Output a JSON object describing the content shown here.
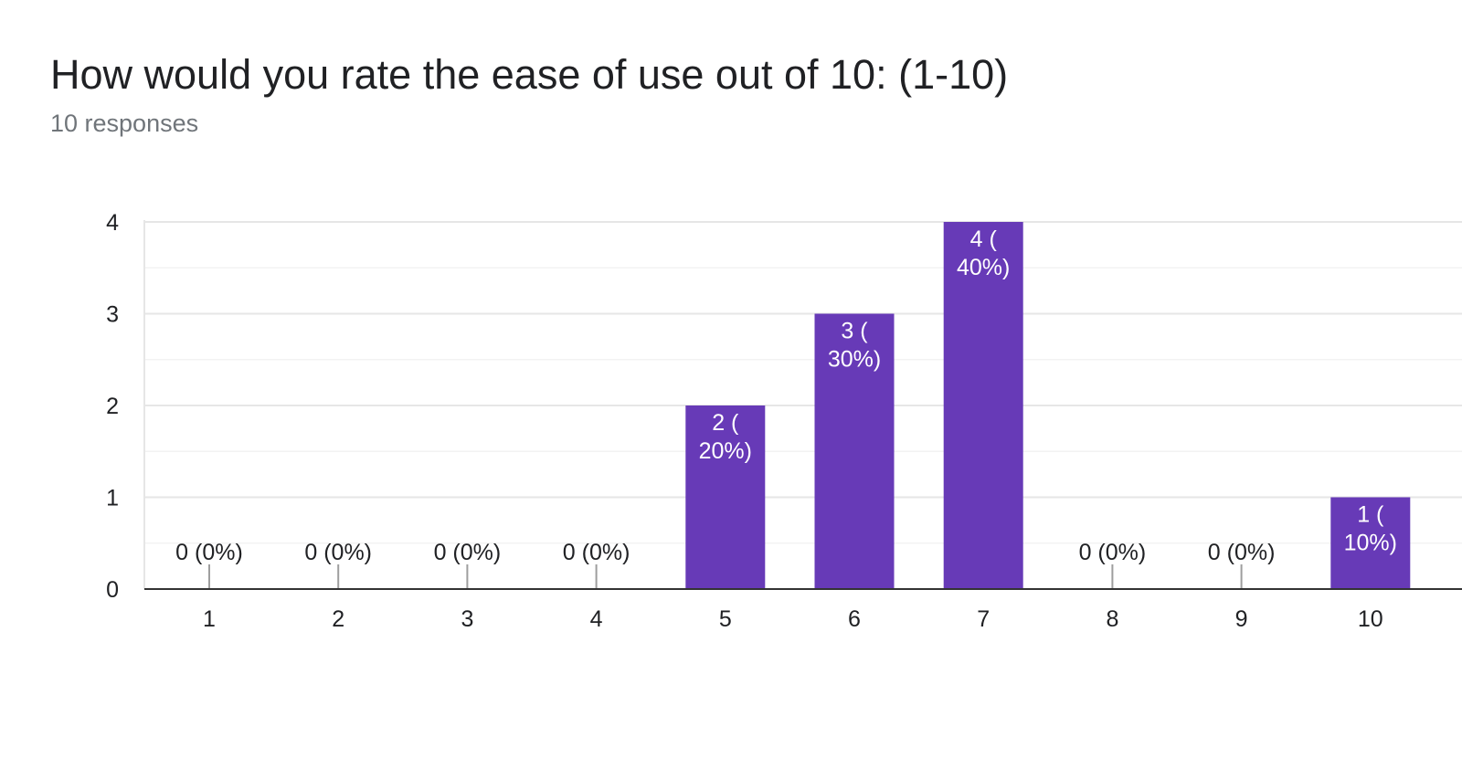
{
  "question": {
    "title": "How would you rate the ease of use out of 10: (1-10)",
    "responses": "10 responses"
  },
  "colors": {
    "bar": "#673ab7",
    "grid": "#e6e6e6",
    "minor_grid": "#f3f3f3",
    "axis": "#333333",
    "zero_tick": "#9e9e9e",
    "label_dark": "#202124",
    "label_light": "#ffffff"
  },
  "chart_data": {
    "type": "bar",
    "categories": [
      "1",
      "2",
      "3",
      "4",
      "5",
      "6",
      "7",
      "8",
      "9",
      "10"
    ],
    "values": [
      0,
      0,
      0,
      0,
      2,
      3,
      4,
      0,
      0,
      1
    ],
    "data_labels": [
      "0 (0%)",
      "0 (0%)",
      "0 (0%)",
      "0 (0%)",
      "2 (\n20%)",
      "3 (\n30%)",
      "4 (\n40%)",
      "0 (0%)",
      "0 (0%)",
      "1 (\n10%)"
    ],
    "yticks": [
      "0",
      "1",
      "2",
      "3",
      "4"
    ],
    "ylim": [
      0,
      4
    ],
    "grid": true,
    "legend": false
  }
}
